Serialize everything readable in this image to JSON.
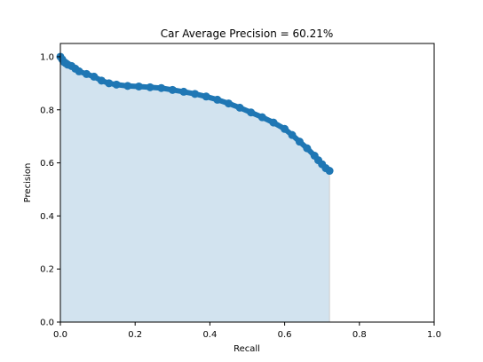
{
  "chart_data": {
    "type": "area",
    "title": "Car Average Precision  = 60.21%",
    "xlabel": "Recall",
    "ylabel": "Precision",
    "xlim": [
      0.0,
      1.0
    ],
    "ylim": [
      0.0,
      1.05
    ],
    "xticks": [
      0.0,
      0.2,
      0.4,
      0.6,
      0.8,
      1.0
    ],
    "yticks": [
      0.0,
      0.2,
      0.4,
      0.6,
      0.8,
      1.0
    ],
    "xtick_labels": [
      "0.0",
      "0.2",
      "0.4",
      "0.6",
      "0.8",
      "1.0"
    ],
    "ytick_labels": [
      "0.0",
      "0.2",
      "0.4",
      "0.6",
      "0.8",
      "1.0"
    ],
    "grid": false,
    "series": [
      {
        "marker": "circle",
        "fill_under": true,
        "x": [
          0.0,
          0.005,
          0.01,
          0.015,
          0.02,
          0.03,
          0.04,
          0.05,
          0.07,
          0.09,
          0.11,
          0.13,
          0.15,
          0.18,
          0.21,
          0.24,
          0.27,
          0.3,
          0.33,
          0.36,
          0.39,
          0.42,
          0.45,
          0.48,
          0.51,
          0.54,
          0.57,
          0.6,
          0.62,
          0.64,
          0.66,
          0.68,
          0.69,
          0.7,
          0.71,
          0.72
        ],
        "y": [
          1.0,
          0.99,
          0.98,
          0.975,
          0.97,
          0.965,
          0.955,
          0.945,
          0.935,
          0.925,
          0.91,
          0.9,
          0.895,
          0.89,
          0.888,
          0.885,
          0.882,
          0.875,
          0.868,
          0.86,
          0.85,
          0.838,
          0.824,
          0.808,
          0.79,
          0.772,
          0.752,
          0.728,
          0.705,
          0.68,
          0.655,
          0.627,
          0.61,
          0.595,
          0.58,
          0.57
        ]
      }
    ]
  },
  "colors": {
    "line": "#1f77b4",
    "fill": "#d2e3ef"
  }
}
